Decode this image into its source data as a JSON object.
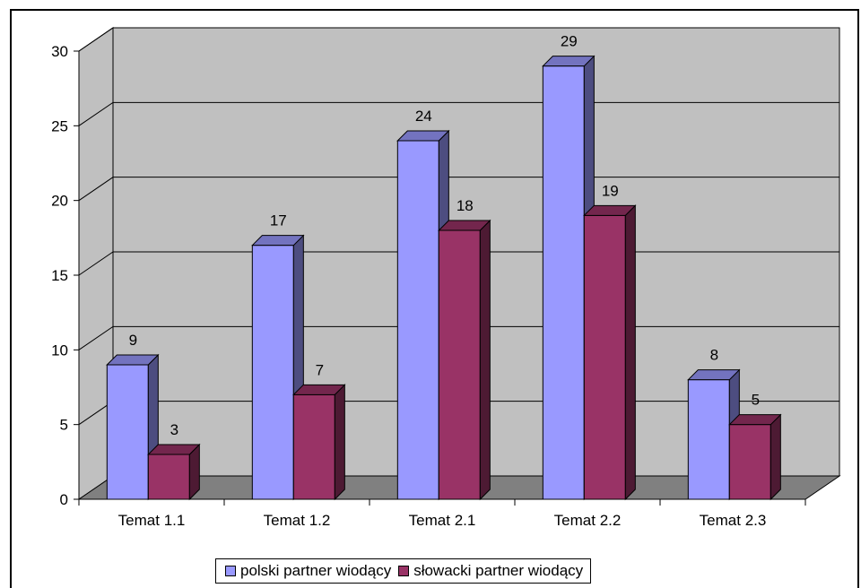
{
  "chart_data": {
    "type": "bar",
    "categories": [
      "Temat 1.1",
      "Temat 1.2",
      "Temat 2.1",
      "Temat 2.2",
      "Temat 2.3"
    ],
    "series": [
      {
        "name": "polski partner wiodący",
        "values": [
          9,
          17,
          24,
          29,
          8
        ],
        "color": "#9999FF"
      },
      {
        "name": "słowacki partner wiodący",
        "values": [
          3,
          7,
          18,
          19,
          5
        ],
        "color": "#993366"
      }
    ],
    "ylim": [
      0,
      30
    ],
    "yticks": [
      "0",
      "5",
      "10",
      "15",
      "20",
      "25",
      "30"
    ],
    "grid": true,
    "legend_position": "bottom",
    "colors": {
      "wall": "#C0C0C0",
      "floor": "#808080"
    }
  }
}
